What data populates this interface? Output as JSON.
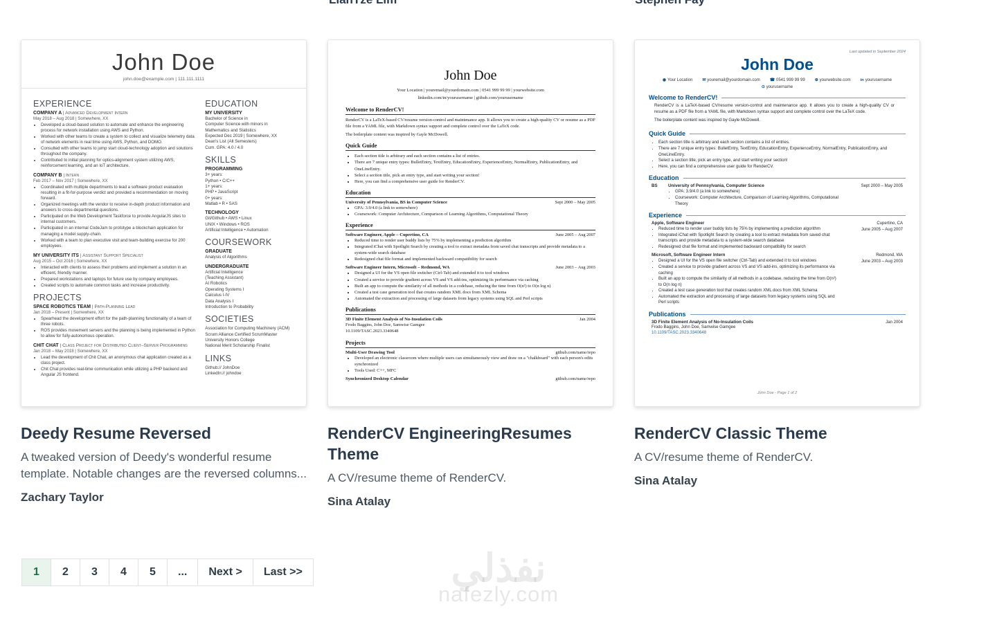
{
  "prev_row": {
    "authors": [
      {
        "name": "LianTze Lim"
      },
      {
        "name": "Stephen Fay"
      }
    ]
  },
  "cards": [
    {
      "title": "Deedy Resume Reversed",
      "description": "A tweaked version of Deedy's wonderful resume template. Notable changes are the reversed columns...",
      "author": "Zachary Taylor"
    },
    {
      "title": "RenderCV EngineeringResumes Theme",
      "description": "A CV/resume theme of RenderCV.",
      "author": "Sina Atalay"
    },
    {
      "title": "RenderCV Classic Theme",
      "description": "A CV/resume theme of RenderCV.",
      "author": "Sina Atalay"
    }
  ],
  "deedy": {
    "name": "John Doe",
    "contact": "john.doe@example.com | 111.111.1111",
    "left": [
      {
        "heading": "EXPERIENCE",
        "entries": [
          {
            "title": "COMPANY A",
            "role": "| Advanced Development Intern",
            "meta": "May 2018 – Aug 2018 | Somewhere, XX",
            "bullets": [
              "Developed a cloud-based solution to automate and enhance the engineering process for network installation using AWS and Python.",
              "Worked with other teams to create a system to collect and visualize telemetry data of network elements in real time using AWS, Python, and DOMO.",
              "Consulted with other teams to jump start cloud-technology adoption and solutions throughout the company.",
              "Contributed to initial planning for optics-alignment system utilizing AWS, reinforcement learning, and an IoT architecture."
            ]
          },
          {
            "title": "COMPANY B",
            "role": "| Intern",
            "meta": "Feb 2017 – Nov 2017 | Somewhere, XX",
            "bullets": [
              "Coordinated with multiple departments to lead a software product evaluation resulting in a fit-for-purpose verdict and provided a recommendation on moving forward.",
              "Organized meetings with the vendor to receive in-depth product information and answers to cross-departmental questions.",
              "Participated on the Web Development Taskforce to provide AngularJS sites to internal customers.",
              "Participated in an internal CodeJam to prototype a blockchain application for managing a model supply-chain.",
              "Worked with a team to plan executive visit and team-building exercise for 200 employees."
            ]
          },
          {
            "title": "MY UNIVERSITY ITS",
            "role": "| Assistant Support Specialist",
            "meta": "Aug 2015 – Oct 2016 | Somewhere, XX",
            "bullets": [
              "Interacted with clients to assess their problems and implement a solution in an efficient, friendly manner.",
              "Prepared workstations and laptops for future use by company employees.",
              "Created scripts to automate common tasks and increase productivity."
            ]
          }
        ]
      },
      {
        "heading": "PROJECTS",
        "entries": [
          {
            "title": "SPACE ROBOTICS TEAM",
            "role": "| Path-Planning Lead",
            "meta": "Jan 2018 – Present | Somewhere, XX",
            "bullets": [
              "Spearhead the development effort for the path-planning functionality of a team of three robots.",
              "ROS provides movement servers and the planning is being implemented in Python to allow for fully-autonomous operation."
            ]
          },
          {
            "title": "CHIT CHAT",
            "role": "| Class Project for Distributed Client–Server Programming",
            "meta": "Jan 2018 – May 2018 | Somewhere, XX",
            "bullets": [
              "Lead the development of Chit Chat, an anonymous chat application created as a class project.",
              "Chit Chat provides real-time communication while utilizing a PHP backend and Angular JS frontend."
            ]
          }
        ]
      }
    ],
    "right": [
      {
        "heading": "EDUCATION",
        "blocks": [
          {
            "title": "MY UNIVERSITY",
            "lines": [
              "Bachelor of Science in",
              "Computer Science with minors in",
              "Mathematics and Statistics",
              "Expected Dec 2019 | Somewhere, XX",
              "Dean's List (All Semesters)",
              "Cum. GPA: 4.0 / 4.0"
            ]
          }
        ]
      },
      {
        "heading": "SKILLS",
        "blocks": [
          {
            "title": "PROGRAMMING",
            "lines": [
              "3+ years:",
              "Python • C/C++",
              "1+ years:",
              "PHP • JavaScript",
              "0+ years:",
              "Matlab • R • SAS"
            ]
          },
          {
            "title": "TECHNOLOGY",
            "lines": [
              "Git/Github • AWS • Linux",
              "UNIX • Windows • ROS",
              "Artificial Intelligence • Automation"
            ]
          }
        ]
      },
      {
        "heading": "COURSEWORK",
        "blocks": [
          {
            "title": "GRADUATE",
            "lines": [
              "Analysis of Algorithms"
            ]
          },
          {
            "title": "UNDERGRADUATE",
            "lines": [
              "Artificial Intelligence",
              "(Teaching Assistant)",
              "AI Robotics",
              "Operating Systems I",
              "Calculus I-IV",
              "Data Analysis I",
              "Introduction to Probability"
            ]
          }
        ]
      },
      {
        "heading": "SOCIETIES",
        "blocks": [
          {
            "title": "",
            "lines": [
              "Association for Computing Machinery (ACM)",
              "Scrum Alliance Certified ScrumMaster",
              "University Honors College",
              "National Merit Scholarship Finalist"
            ]
          }
        ]
      },
      {
        "heading": "LINKS",
        "blocks": [
          {
            "title": "",
            "lines": [
              "Github:// JohnDoe",
              "LinkedIn:// johndoe"
            ]
          }
        ]
      }
    ]
  },
  "eng": {
    "name": "John Doe",
    "contact1": "Your Location | youremail@yourdomain.com | 0541 999 99 99 | yourwebsite.com",
    "contact2": "linkedin.com/in/yourusername | github.com/yourusername",
    "sections": [
      {
        "title": "Welcome to RenderCV!",
        "paras": [
          "RenderCV is a LaTeX-based CV/resume version-control and maintenance app. It allows you to create a high-quality CV or resume as a PDF file from a YAML file, with Markdown syntax support and complete control over the LaTeX code.",
          "The boilerplate content was inspired by Gayle McDowell."
        ]
      },
      {
        "title": "Quick Guide",
        "gbullets": [
          "Each section title is arbitrary and each section contains a list of entries.",
          "There are 7 unique entry types: BulletEntry, TextEntry, EducationEntry, ExperienceEntry, NormalEntry, PublicationEntry, and OneLineEntry.",
          "Select a section title, pick an entry type, and start writing your section!",
          "Here, you can find a comprehensive user guide for RenderCV."
        ]
      },
      {
        "title": "Education",
        "items": [
          {
            "head": "University of Pennsylvania, BS in Computer Science",
            "right": "Sept 2000 – May 2005",
            "bullets": [
              "GPA: 3.9/4.0 (a link to somewhere)",
              "Coursework: Computer Architecture, Comparison of Learning Algorithms, Computational Theory"
            ]
          }
        ]
      },
      {
        "title": "Experience",
        "items": [
          {
            "head": "Software Engineer, Apple – Cupertino, CA",
            "right": "June 2005 – Aug 2007",
            "bullets": [
              "Reduced time to render user buddy lists by 75% by implementing a prediction algorithm",
              "Integrated iChat with Spotlight Search by creating a tool to extract metadata from saved chat transcripts and provide metadata to a system-wide search database",
              "Redesigned chat file format and implemented backward compatibility for search"
            ]
          },
          {
            "head": "Software Engineer Intern, Microsoft – Redmond, WA",
            "right": "June 2003 – Aug 2003",
            "bullets": [
              "Designed a UI for the VS open file switcher (Ctrl-Tab) and extended it to tool windows",
              "Created a service to provide gradient across VS and VS add-ins, optimizing its performance via caching",
              "Built an app to compute the similarity of all methods in a codebase, reducing the time from O(n²) to O(n log n)",
              "Created a test case generation tool that creates random XML docs from XML Schema",
              "Automated the extraction and processing of large datasets from legacy systems using SQL and Perl scripts"
            ]
          }
        ]
      },
      {
        "title": "Publications",
        "items": [
          {
            "head": "3D Finite Element Analysis of No-Insulation Coils",
            "right": "Jan 2004",
            "lines": [
              "Frodo Baggins, John Doe, Samwise Gamgee",
              "10.1109/TASC.2023.3340648"
            ]
          }
        ]
      },
      {
        "title": "Projects",
        "items": [
          {
            "head": "Multi-User Drawing Tool",
            "right": "github.com/name/repo",
            "bullets": [
              "Developed an electronic classroom where multiple users can simultaneously view and draw on a \"chalkboard\" with each person's edits synchronized",
              "Tools Used: C++, MFC"
            ]
          },
          {
            "head": "Synchronized Desktop Calendar",
            "right": "github.com/name/repo"
          }
        ]
      }
    ]
  },
  "classic": {
    "last_updated": "Last updated in September 2024",
    "name": "John Doe",
    "contacts": [
      {
        "icon": "location-pin-icon",
        "glyph": "◉",
        "text": "Your Location"
      },
      {
        "icon": "email-icon",
        "glyph": "✉",
        "text": "youremail@yourdomain.com"
      },
      {
        "icon": "phone-icon",
        "glyph": "☎",
        "text": "0541 999 99 99"
      },
      {
        "icon": "website-link-icon",
        "glyph": "⊕",
        "text": "yourwebsite.com"
      },
      {
        "icon": "linkedin-icon",
        "glyph": "in",
        "text": "yourusername"
      },
      {
        "icon": "github-icon",
        "glyph": "⊙",
        "text": "yourusername"
      }
    ],
    "sections": [
      {
        "title": "Welcome to RenderCV!",
        "items": [
          {
            "paras": [
              "RenderCV is a LaTeX-based CV/resume version-control and maintenance app. It allows you to create a high-quality CV or resume as a PDF file from a YAML file, with Markdown syntax support and complete control over the LaTeX code.",
              "The boilerplate content was inspired by Gayle McDowell."
            ]
          }
        ]
      },
      {
        "title": "Quick Guide",
        "items": [
          {
            "bullets": [
              "Each section title is arbitrary and each section contains a list of entries.",
              "There are 7 unique entry types: BulletEntry, TextEntry, EducationEntry, ExperienceEntry, NormalEntry, PublicationEntry, and OneLineEntry.",
              "Select a section title, pick an entry type, and start writing your section!",
              "Here, you can find a comprehensive user guide for RenderCV."
            ]
          }
        ]
      },
      {
        "title": "Education",
        "items": [
          {
            "label": "BS",
            "head": "University of Pennsylvania, Computer Science",
            "right": [
              "Sept 2000 – May 2005"
            ],
            "bullets": [
              "GPA: 3.9/4.0 (a link to somewhere)",
              "Coursework: Computer Architecture, Comparison of Learning Algorithms, Computational Theory"
            ]
          }
        ]
      },
      {
        "title": "Experience",
        "items": [
          {
            "head": "Apple, Software Engineer",
            "right": [
              "Cupertino, CA",
              "June 2005 – Aug 2007"
            ],
            "bullets": [
              "Reduced time to render user buddy lists by 75% by implementing a prediction algorithm",
              "Integrated iChat with Spotlight Search by creating a tool to extract metadata from saved chat transcripts and provide metadata to a system-wide search database",
              "Redesigned chat file format and implemented backward compatibility for search"
            ]
          },
          {
            "head": "Microsoft, Software Engineer Intern",
            "right": [
              "Redmond, WA",
              "June 2003 – Aug 2003"
            ],
            "bullets": [
              "Designed a UI for the VS open file switcher (Ctrl-Tab) and extended it to tool windows",
              "Created a service to provide gradient across VS and VS add-ins, optimizing its performance via caching",
              "Built an app to compute the similarity of all methods in a codebase, reducing the time from O(n²) to O(n log n)",
              "Created a test case generation tool that creates random XML docs from XML Schema",
              "Automated the extraction and processing of large datasets from legacy systems using SQL and Perl scripts"
            ]
          }
        ]
      },
      {
        "title": "Publications",
        "items": [
          {
            "head": "3D Finite Element Analysis of No-Insulation Coils",
            "right": [
              "Jan 2004"
            ],
            "lines": [
              "Frodo Baggins, John Doe, Samwise Gamgee"
            ],
            "link": "10.1109/TASC.2023.3340648"
          }
        ]
      }
    ],
    "footer": "John Doe - Page 1 of 2"
  },
  "pagination": {
    "active": "1",
    "pages": [
      "2",
      "3",
      "4",
      "5",
      "..."
    ],
    "next": "Next >",
    "last": "Last >>"
  },
  "watermark": {
    "arabic": "نفذلي",
    "latin": "nafezly.com"
  },
  "colors": {
    "accent_blue": "#004f90",
    "active_page_green": "#1d6f42",
    "active_page_bg": "#e9f4ed",
    "title_navy": "#2b3b4e"
  }
}
